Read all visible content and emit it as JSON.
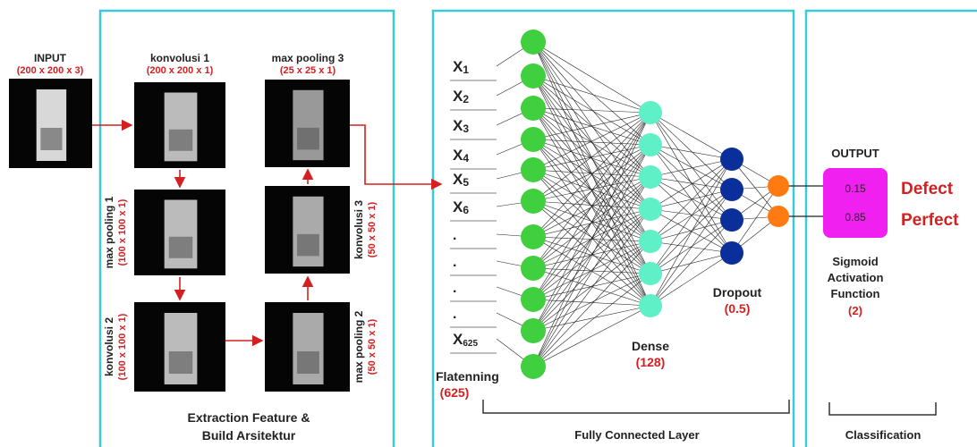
{
  "input": {
    "title": "INPUT",
    "size": "(200 x 200 x 3)"
  },
  "extraction": {
    "steps": [
      {
        "title": "konvolusi 1",
        "size": "(200 x 200 x 1)"
      },
      {
        "title": "max pooling 1",
        "size": "(100 x 100 x 1)"
      },
      {
        "title": "konvolusi 2",
        "size": "(100 x 100 x 1)"
      },
      {
        "title": "max pooling 2",
        "size": "(50 x 50 x 1)"
      },
      {
        "title": "konvolusi 3",
        "size": "(50 x 50 x 1)"
      },
      {
        "title": "max pooling 3",
        "size": "(25 x 25 x 1)"
      }
    ],
    "caption": [
      "Extraction Feature &",
      "Build Arsitektur"
    ]
  },
  "fully_connected": {
    "inputs": [
      {
        "text": "X",
        "sub": "1"
      },
      {
        "text": "X",
        "sub": "2"
      },
      {
        "text": "X",
        "sub": "3"
      },
      {
        "text": "X",
        "sub": "4"
      },
      {
        "text": "X",
        "sub": "5"
      },
      {
        "text": "X",
        "sub": "6"
      },
      {
        "text": "."
      },
      {
        "text": "."
      },
      {
        "text": "."
      },
      {
        "text": "."
      },
      {
        "text": "X",
        "sub": "625"
      }
    ],
    "flatten": {
      "title": "Flatenning",
      "size": "(625)"
    },
    "dense": {
      "title": "Dense",
      "size": "(128)"
    },
    "dropout": {
      "title": "Dropout",
      "size": "(0.5)"
    },
    "caption": "Fully Connected Layer"
  },
  "classification": {
    "output_title": "OUTPUT",
    "outputs": [
      {
        "value": "0.15",
        "label": "Defect"
      },
      {
        "value": "0.85",
        "label": "Perfect"
      }
    ],
    "activation": [
      "Sigmoid",
      "Activation",
      "Function"
    ],
    "count": "(2)",
    "caption": "Classification"
  }
}
